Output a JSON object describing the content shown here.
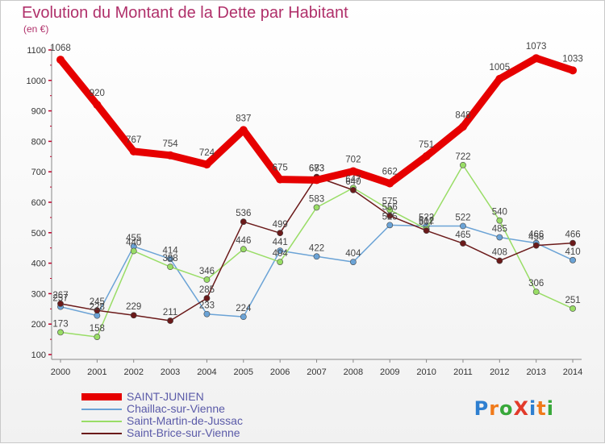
{
  "chart_data": {
    "type": "line",
    "title": "Evolution du Montant de la Dette par Habitant",
    "subtitle": "(en €)",
    "x": [
      "2000",
      "2001",
      "2002",
      "2003",
      "2004",
      "2005",
      "2006",
      "2007",
      "2008",
      "2009",
      "2010",
      "2011",
      "2012",
      "2013",
      "2014"
    ],
    "ylim": [
      100,
      1100
    ],
    "yticks": [
      100,
      200,
      300,
      400,
      500,
      600,
      700,
      800,
      900,
      1000,
      1100
    ],
    "grid": false,
    "legend_position": "bottom-left",
    "series": [
      {
        "name": "SAINT-JUNIEN",
        "color": "#e60000",
        "values": [
          1068,
          920,
          767,
          754,
          724,
          837,
          675,
          673,
          702,
          662,
          751,
          848,
          1005,
          1073,
          1033
        ]
      },
      {
        "name": "Chaillac-sur-Vienne",
        "color": "#6ba3d6",
        "values": [
          257,
          228,
          455,
          414,
          233,
          224,
          441,
          422,
          404,
          525,
          522,
          522,
          485,
          466,
          410
        ]
      },
      {
        "name": "Saint-Martin-de-Jussac",
        "color": "#99dd66",
        "values": [
          173,
          158,
          440,
          388,
          346,
          446,
          404,
          583,
          647,
          575,
          512,
          722,
          540,
          306,
          251
        ]
      },
      {
        "name": "Saint-Brice-sur-Vienne",
        "color": "#6b1a1a",
        "values": [
          267,
          245,
          229,
          211,
          285,
          536,
          499,
          683,
          640,
          556,
          507,
          465,
          408,
          458,
          466
        ]
      }
    ]
  },
  "brand": {
    "logo_text": "ProXiti",
    "letter_colors": [
      "#2e7fd0",
      "#f07a1a",
      "#38a83a",
      "#e23a2a",
      "#2e7fd0",
      "#f07a1a",
      "#38a83a"
    ]
  }
}
